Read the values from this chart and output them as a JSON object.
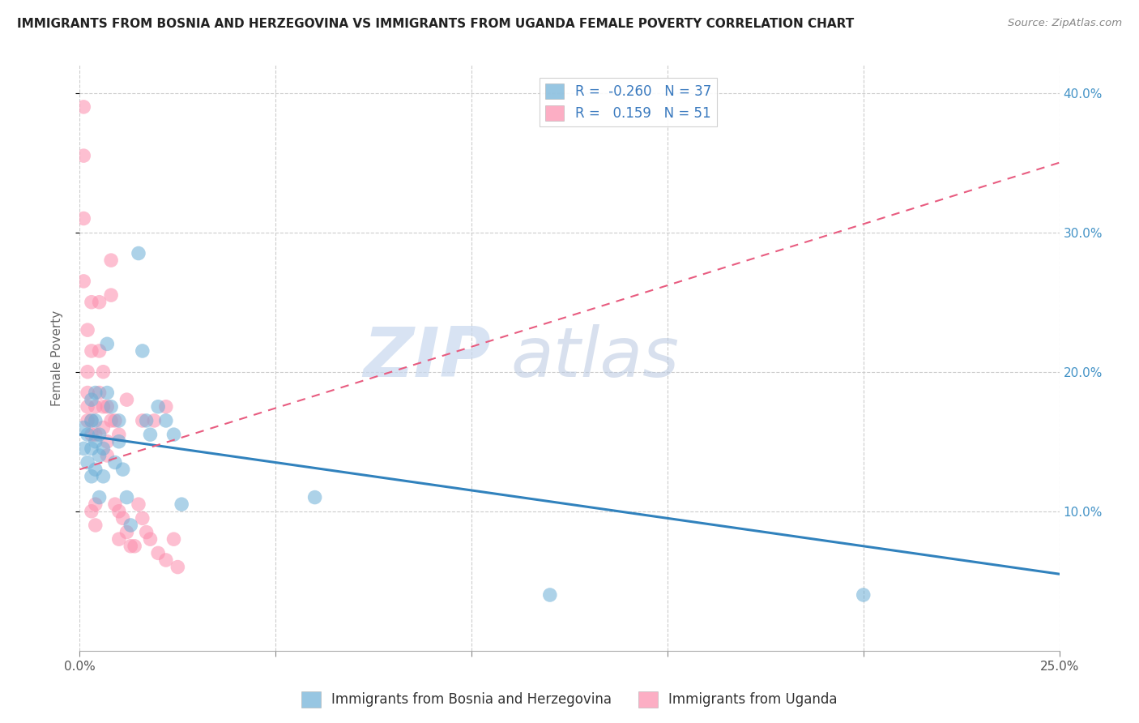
{
  "title": "IMMIGRANTS FROM BOSNIA AND HERZEGOVINA VS IMMIGRANTS FROM UGANDA FEMALE POVERTY CORRELATION CHART",
  "source": "Source: ZipAtlas.com",
  "xlabel_bosnia": "Immigrants from Bosnia and Herzegovina",
  "xlabel_uganda": "Immigrants from Uganda",
  "ylabel": "Female Poverty",
  "xlim": [
    0,
    0.25
  ],
  "ylim": [
    0,
    0.42
  ],
  "yticks": [
    0.1,
    0.2,
    0.3,
    0.4
  ],
  "xticks": [
    0.0,
    0.05,
    0.1,
    0.15,
    0.2,
    0.25
  ],
  "ytick_labels_right": [
    "10.0%",
    "20.0%",
    "30.0%",
    "40.0%"
  ],
  "bosnia_color": "#6baed6",
  "uganda_color": "#fc8cac",
  "bosnia_line_color": "#3182bd",
  "uganda_line_color": "#e85c80",
  "bosnia_R": -0.26,
  "bosnia_N": 37,
  "uganda_R": 0.159,
  "uganda_N": 51,
  "legend_R_color": "#3a7abf",
  "watermark_zip": "ZIP",
  "watermark_atlas": "atlas",
  "bosnia_x": [
    0.001,
    0.001,
    0.002,
    0.002,
    0.003,
    0.003,
    0.003,
    0.003,
    0.004,
    0.004,
    0.004,
    0.004,
    0.005,
    0.005,
    0.005,
    0.006,
    0.006,
    0.007,
    0.007,
    0.008,
    0.009,
    0.01,
    0.01,
    0.011,
    0.012,
    0.013,
    0.015,
    0.016,
    0.017,
    0.018,
    0.02,
    0.022,
    0.024,
    0.026,
    0.06,
    0.12,
    0.2
  ],
  "bosnia_y": [
    0.16,
    0.145,
    0.155,
    0.135,
    0.18,
    0.165,
    0.145,
    0.125,
    0.185,
    0.165,
    0.15,
    0.13,
    0.155,
    0.14,
    0.11,
    0.145,
    0.125,
    0.22,
    0.185,
    0.175,
    0.135,
    0.165,
    0.15,
    0.13,
    0.11,
    0.09,
    0.285,
    0.215,
    0.165,
    0.155,
    0.175,
    0.165,
    0.155,
    0.105,
    0.11,
    0.04,
    0.04
  ],
  "uganda_x": [
    0.001,
    0.001,
    0.001,
    0.001,
    0.002,
    0.002,
    0.002,
    0.002,
    0.002,
    0.003,
    0.003,
    0.003,
    0.003,
    0.003,
    0.004,
    0.004,
    0.004,
    0.004,
    0.005,
    0.005,
    0.005,
    0.006,
    0.006,
    0.006,
    0.007,
    0.007,
    0.007,
    0.008,
    0.008,
    0.008,
    0.009,
    0.009,
    0.01,
    0.01,
    0.01,
    0.011,
    0.012,
    0.012,
    0.013,
    0.014,
    0.015,
    0.016,
    0.016,
    0.017,
    0.018,
    0.019,
    0.02,
    0.022,
    0.022,
    0.024,
    0.025
  ],
  "uganda_y": [
    0.39,
    0.355,
    0.31,
    0.265,
    0.23,
    0.2,
    0.185,
    0.175,
    0.165,
    0.25,
    0.215,
    0.165,
    0.155,
    0.1,
    0.175,
    0.155,
    0.105,
    0.09,
    0.25,
    0.215,
    0.185,
    0.2,
    0.175,
    0.16,
    0.175,
    0.15,
    0.14,
    0.28,
    0.255,
    0.165,
    0.165,
    0.105,
    0.155,
    0.1,
    0.08,
    0.095,
    0.18,
    0.085,
    0.075,
    0.075,
    0.105,
    0.165,
    0.095,
    0.085,
    0.08,
    0.165,
    0.07,
    0.175,
    0.065,
    0.08,
    0.06
  ],
  "bosnia_trend_x": [
    0.0,
    0.25
  ],
  "bosnia_trend_y": [
    0.155,
    0.055
  ],
  "uganda_trend_x": [
    0.0,
    0.25
  ],
  "uganda_trend_y": [
    0.13,
    0.35
  ]
}
